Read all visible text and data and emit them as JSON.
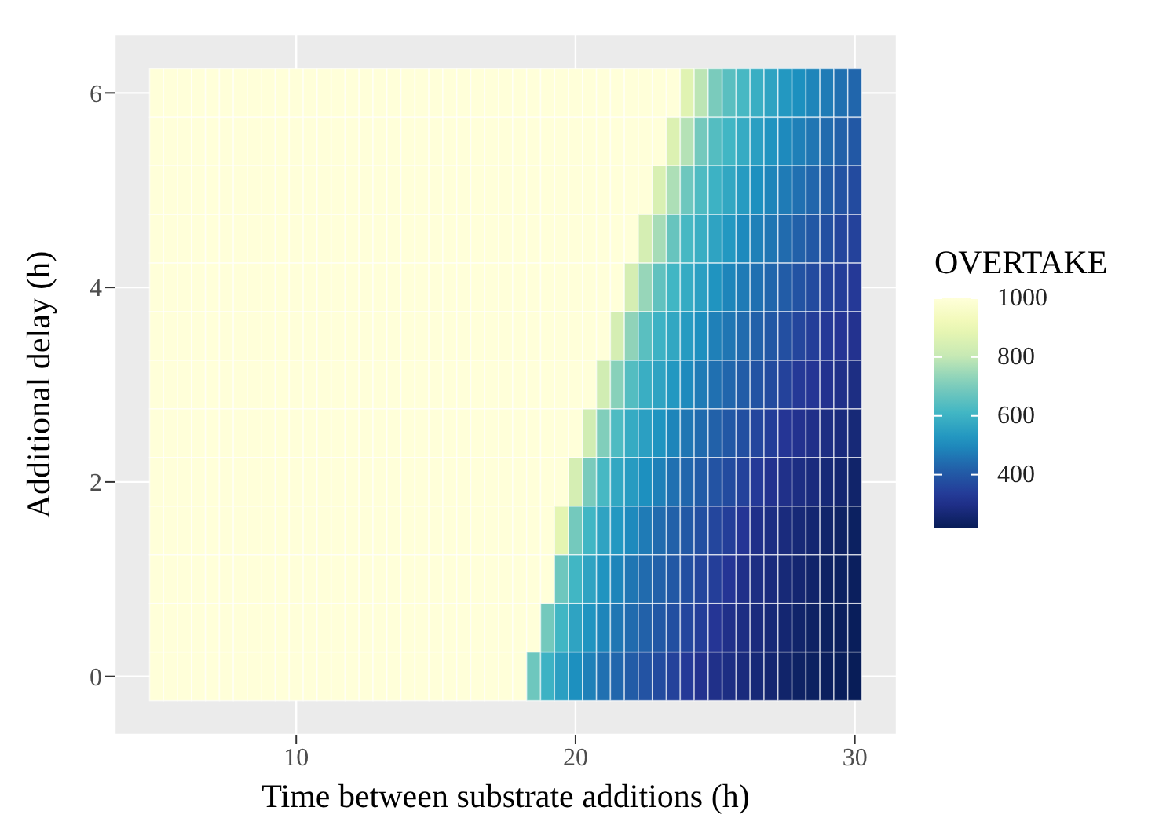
{
  "chart_data": {
    "type": "heatmap",
    "xlabel": "Time between substrate additions (h)",
    "ylabel": "Additional delay (h)",
    "clabel": "OVERTAKE",
    "x": [
      5,
      5.5,
      6,
      6.5,
      7,
      7.5,
      8,
      8.5,
      9,
      9.5,
      10,
      10.5,
      11,
      11.5,
      12,
      12.5,
      13,
      13.5,
      14,
      14.5,
      15,
      15.5,
      16,
      16.5,
      17,
      17.5,
      18,
      18.5,
      19,
      19.5,
      20,
      20.5,
      21,
      21.5,
      22,
      22.5,
      23,
      23.5,
      24,
      24.5,
      25,
      25.5,
      26,
      26.5,
      27,
      27.5,
      28,
      28.5,
      29,
      29.5,
      30
    ],
    "y": [
      6,
      5.5,
      5,
      4.5,
      4,
      3.5,
      3,
      2.5,
      2,
      1.5,
      1,
      0.5,
      0
    ],
    "cells": [
      [
        1000,
        1000,
        1000,
        1000,
        1000,
        1000,
        1000,
        1000,
        1000,
        1000,
        1000,
        1000,
        1000,
        1000,
        1000,
        1000,
        1000,
        1000,
        1000,
        1000,
        1000,
        1000,
        1000,
        1000,
        1000,
        1000,
        1000,
        1000,
        1000,
        1000,
        1000,
        1000,
        1000,
        1000,
        1000,
        1000,
        1000,
        1000,
        870,
        790,
        700,
        650,
        620,
        590,
        560,
        530,
        510,
        490,
        470,
        450,
        430
      ],
      [
        1000,
        1000,
        1000,
        1000,
        1000,
        1000,
        1000,
        1000,
        1000,
        1000,
        1000,
        1000,
        1000,
        1000,
        1000,
        1000,
        1000,
        1000,
        1000,
        1000,
        1000,
        1000,
        1000,
        1000,
        1000,
        1000,
        1000,
        1000,
        1000,
        1000,
        1000,
        1000,
        1000,
        1000,
        1000,
        1000,
        1000,
        860,
        780,
        690,
        640,
        610,
        580,
        550,
        520,
        500,
        480,
        460,
        440,
        420,
        400
      ],
      [
        1000,
        1000,
        1000,
        1000,
        1000,
        1000,
        1000,
        1000,
        1000,
        1000,
        1000,
        1000,
        1000,
        1000,
        1000,
        1000,
        1000,
        1000,
        1000,
        1000,
        1000,
        1000,
        1000,
        1000,
        1000,
        1000,
        1000,
        1000,
        1000,
        1000,
        1000,
        1000,
        1000,
        1000,
        1000,
        1000,
        850,
        770,
        680,
        630,
        600,
        570,
        540,
        510,
        490,
        470,
        450,
        430,
        410,
        390,
        370
      ],
      [
        1000,
        1000,
        1000,
        1000,
        1000,
        1000,
        1000,
        1000,
        1000,
        1000,
        1000,
        1000,
        1000,
        1000,
        1000,
        1000,
        1000,
        1000,
        1000,
        1000,
        1000,
        1000,
        1000,
        1000,
        1000,
        1000,
        1000,
        1000,
        1000,
        1000,
        1000,
        1000,
        1000,
        1000,
        1000,
        840,
        760,
        670,
        620,
        590,
        560,
        530,
        500,
        480,
        460,
        440,
        420,
        400,
        380,
        360,
        350
      ],
      [
        1000,
        1000,
        1000,
        1000,
        1000,
        1000,
        1000,
        1000,
        1000,
        1000,
        1000,
        1000,
        1000,
        1000,
        1000,
        1000,
        1000,
        1000,
        1000,
        1000,
        1000,
        1000,
        1000,
        1000,
        1000,
        1000,
        1000,
        1000,
        1000,
        1000,
        1000,
        1000,
        1000,
        1000,
        840,
        740,
        660,
        610,
        580,
        550,
        520,
        490,
        470,
        450,
        430,
        410,
        390,
        370,
        350,
        340,
        330
      ],
      [
        1000,
        1000,
        1000,
        1000,
        1000,
        1000,
        1000,
        1000,
        1000,
        1000,
        1000,
        1000,
        1000,
        1000,
        1000,
        1000,
        1000,
        1000,
        1000,
        1000,
        1000,
        1000,
        1000,
        1000,
        1000,
        1000,
        1000,
        1000,
        1000,
        1000,
        1000,
        1000,
        1000,
        840,
        730,
        650,
        600,
        570,
        540,
        510,
        480,
        460,
        440,
        420,
        400,
        380,
        360,
        340,
        330,
        320,
        310
      ],
      [
        1000,
        1000,
        1000,
        1000,
        1000,
        1000,
        1000,
        1000,
        1000,
        1000,
        1000,
        1000,
        1000,
        1000,
        1000,
        1000,
        1000,
        1000,
        1000,
        1000,
        1000,
        1000,
        1000,
        1000,
        1000,
        1000,
        1000,
        1000,
        1000,
        1000,
        1000,
        1000,
        830,
        720,
        640,
        590,
        560,
        530,
        500,
        470,
        450,
        430,
        410,
        390,
        370,
        350,
        330,
        320,
        310,
        300,
        290
      ],
      [
        1000,
        1000,
        1000,
        1000,
        1000,
        1000,
        1000,
        1000,
        1000,
        1000,
        1000,
        1000,
        1000,
        1000,
        1000,
        1000,
        1000,
        1000,
        1000,
        1000,
        1000,
        1000,
        1000,
        1000,
        1000,
        1000,
        1000,
        1000,
        1000,
        1000,
        1000,
        830,
        710,
        630,
        580,
        550,
        520,
        490,
        460,
        440,
        420,
        400,
        380,
        360,
        340,
        320,
        310,
        300,
        290,
        280,
        270
      ],
      [
        1000,
        1000,
        1000,
        1000,
        1000,
        1000,
        1000,
        1000,
        1000,
        1000,
        1000,
        1000,
        1000,
        1000,
        1000,
        1000,
        1000,
        1000,
        1000,
        1000,
        1000,
        1000,
        1000,
        1000,
        1000,
        1000,
        1000,
        1000,
        1000,
        1000,
        840,
        700,
        620,
        570,
        540,
        510,
        480,
        450,
        430,
        410,
        390,
        370,
        350,
        330,
        310,
        300,
        290,
        280,
        270,
        260,
        250
      ],
      [
        1000,
        1000,
        1000,
        1000,
        1000,
        1000,
        1000,
        1000,
        1000,
        1000,
        1000,
        1000,
        1000,
        1000,
        1000,
        1000,
        1000,
        1000,
        1000,
        1000,
        1000,
        1000,
        1000,
        1000,
        1000,
        1000,
        1000,
        1000,
        1000,
        880,
        690,
        610,
        560,
        530,
        500,
        470,
        440,
        420,
        400,
        380,
        360,
        340,
        320,
        300,
        290,
        280,
        270,
        260,
        250,
        240,
        235
      ],
      [
        1000,
        1000,
        1000,
        1000,
        1000,
        1000,
        1000,
        1000,
        1000,
        1000,
        1000,
        1000,
        1000,
        1000,
        1000,
        1000,
        1000,
        1000,
        1000,
        1000,
        1000,
        1000,
        1000,
        1000,
        1000,
        1000,
        1000,
        1000,
        1000,
        680,
        610,
        560,
        520,
        490,
        460,
        440,
        420,
        400,
        380,
        360,
        340,
        320,
        300,
        290,
        280,
        270,
        260,
        250,
        240,
        235,
        230
      ],
      [
        1000,
        1000,
        1000,
        1000,
        1000,
        1000,
        1000,
        1000,
        1000,
        1000,
        1000,
        1000,
        1000,
        1000,
        1000,
        1000,
        1000,
        1000,
        1000,
        1000,
        1000,
        1000,
        1000,
        1000,
        1000,
        1000,
        1000,
        1000,
        690,
        610,
        560,
        520,
        490,
        460,
        440,
        420,
        400,
        380,
        360,
        340,
        320,
        300,
        290,
        280,
        270,
        260,
        250,
        240,
        235,
        230,
        225
      ],
      [
        1000,
        1000,
        1000,
        1000,
        1000,
        1000,
        1000,
        1000,
        1000,
        1000,
        1000,
        1000,
        1000,
        1000,
        1000,
        1000,
        1000,
        1000,
        1000,
        1000,
        1000,
        1000,
        1000,
        1000,
        1000,
        1000,
        1000,
        680,
        600,
        550,
        510,
        480,
        450,
        430,
        410,
        390,
        370,
        350,
        330,
        310,
        300,
        290,
        280,
        270,
        260,
        250,
        240,
        235,
        230,
        225,
        220
      ]
    ],
    "clim": [
      220,
      1000
    ],
    "cticks": [
      400,
      600,
      800,
      1000
    ],
    "xlim": [
      3.5,
      31.5
    ],
    "ylim": [
      -0.6,
      6.6
    ],
    "xticks": [
      10,
      20,
      30
    ],
    "yticks": [
      0,
      2,
      4,
      6
    ],
    "grid": true
  }
}
